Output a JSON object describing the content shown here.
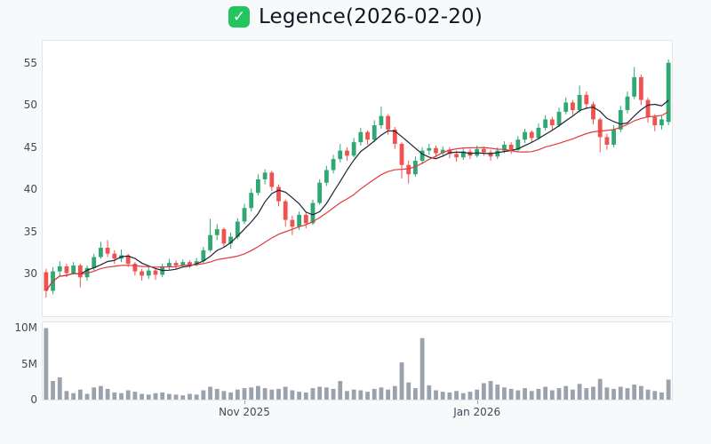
{
  "header": {
    "icon_glyph": "✓",
    "icon_color": "#22c55e",
    "title": "Legence(2026-02-20)"
  },
  "chart_data": {
    "type": "candlestick",
    "title": "Legence(2026-02-20)",
    "panels": [
      "price",
      "volume"
    ],
    "legend_position": "none",
    "grid": false,
    "price_axis": {
      "min": 25.0,
      "max": 57.6,
      "ticks": [
        55,
        50,
        45,
        40,
        35,
        30
      ]
    },
    "volume_axis": {
      "min": 0,
      "max": 10.8,
      "unit": "M",
      "ticks": [
        {
          "value": 10,
          "label": "10M"
        },
        {
          "value": 5,
          "label": "5M"
        },
        {
          "value": 0,
          "label": "0"
        }
      ]
    },
    "x_axis": {
      "ticks": [
        {
          "index": 29,
          "label": "Nov 2025"
        },
        {
          "index": 63,
          "label": "Jan 2026"
        }
      ]
    },
    "colors": {
      "up": "#2fa874",
      "down": "#ef5350",
      "volume": "#9aa3ad",
      "ma_fast": "#1c2333",
      "ma_slow": "#e03a3a"
    },
    "series": {
      "ohlc": [
        [
          30.2,
          30.6,
          27.2,
          28.0
        ],
        [
          28.0,
          30.8,
          27.6,
          30.3
        ],
        [
          30.3,
          31.5,
          29.8,
          30.9
        ],
        [
          30.9,
          31.2,
          29.6,
          30.1
        ],
        [
          30.1,
          31.4,
          29.9,
          31.0
        ],
        [
          31.0,
          31.2,
          28.4,
          29.6
        ],
        [
          29.6,
          31.0,
          29.2,
          30.7
        ],
        [
          30.7,
          32.4,
          30.4,
          32.0
        ],
        [
          32.0,
          33.8,
          31.8,
          33.1
        ],
        [
          33.1,
          34.0,
          32.0,
          32.4
        ],
        [
          32.4,
          32.8,
          31.2,
          31.8
        ],
        [
          31.8,
          32.9,
          31.4,
          32.2
        ],
        [
          32.2,
          32.4,
          30.8,
          31.2
        ],
        [
          31.2,
          31.4,
          29.8,
          30.3
        ],
        [
          30.3,
          30.6,
          29.2,
          29.8
        ],
        [
          29.8,
          30.8,
          29.4,
          30.4
        ],
        [
          30.4,
          30.7,
          29.3,
          29.9
        ],
        [
          29.9,
          31.2,
          29.6,
          30.9
        ],
        [
          30.9,
          31.8,
          30.5,
          31.3
        ],
        [
          31.3,
          31.6,
          30.6,
          31.0
        ],
        [
          31.0,
          31.7,
          30.8,
          31.4
        ],
        [
          31.4,
          31.6,
          30.7,
          31.1
        ],
        [
          31.1,
          31.9,
          30.9,
          31.5
        ],
        [
          31.5,
          33.2,
          31.3,
          32.8
        ],
        [
          32.8,
          36.5,
          32.6,
          34.6
        ],
        [
          34.6,
          35.9,
          34.0,
          35.3
        ],
        [
          35.3,
          35.5,
          33.2,
          33.6
        ],
        [
          33.6,
          34.9,
          33.0,
          34.4
        ],
        [
          34.4,
          36.6,
          34.1,
          36.2
        ],
        [
          36.2,
          38.3,
          35.9,
          37.8
        ],
        [
          37.8,
          40.1,
          37.4,
          39.6
        ],
        [
          39.6,
          41.8,
          39.3,
          41.2
        ],
        [
          41.2,
          42.4,
          40.6,
          42.0
        ],
        [
          42.0,
          42.2,
          39.8,
          40.3
        ],
        [
          40.3,
          40.6,
          38.0,
          38.6
        ],
        [
          38.6,
          38.8,
          35.6,
          36.4
        ],
        [
          36.4,
          36.9,
          34.6,
          35.6
        ],
        [
          35.6,
          37.4,
          35.2,
          37.0
        ],
        [
          37.0,
          37.3,
          35.4,
          36.0
        ],
        [
          36.0,
          38.8,
          35.8,
          38.4
        ],
        [
          38.4,
          41.2,
          38.2,
          40.8
        ],
        [
          40.8,
          42.8,
          40.4,
          42.3
        ],
        [
          42.3,
          44.1,
          41.9,
          43.6
        ],
        [
          43.6,
          45.4,
          43.2,
          44.6
        ],
        [
          44.6,
          45.0,
          43.4,
          44.0
        ],
        [
          44.0,
          46.1,
          43.8,
          45.6
        ],
        [
          45.6,
          47.3,
          45.2,
          46.8
        ],
        [
          46.8,
          47.0,
          45.3,
          45.9
        ],
        [
          45.9,
          48.2,
          45.6,
          47.6
        ],
        [
          47.6,
          49.8,
          47.2,
          48.7
        ],
        [
          48.7,
          48.9,
          46.5,
          47.1
        ],
        [
          47.1,
          47.4,
          44.8,
          45.4
        ],
        [
          45.4,
          45.6,
          41.3,
          42.9
        ],
        [
          42.9,
          43.4,
          40.7,
          41.8
        ],
        [
          41.8,
          43.9,
          41.5,
          43.4
        ],
        [
          43.4,
          45.0,
          43.0,
          44.6
        ],
        [
          44.6,
          45.4,
          44.1,
          44.9
        ],
        [
          44.9,
          45.2,
          43.8,
          44.3
        ],
        [
          44.3,
          45.1,
          43.9,
          44.7
        ],
        [
          44.7,
          45.0,
          43.7,
          44.2
        ],
        [
          44.2,
          44.6,
          43.3,
          43.8
        ],
        [
          43.8,
          44.9,
          43.5,
          44.5
        ],
        [
          44.5,
          44.8,
          43.6,
          44.0
        ],
        [
          44.0,
          45.2,
          43.8,
          44.8
        ],
        [
          44.8,
          45.1,
          44.0,
          44.4
        ],
        [
          44.4,
          44.7,
          43.4,
          43.9
        ],
        [
          43.9,
          45.0,
          43.6,
          44.6
        ],
        [
          44.6,
          45.7,
          44.3,
          45.3
        ],
        [
          45.3,
          45.6,
          44.2,
          44.7
        ],
        [
          44.7,
          46.3,
          44.5,
          45.9
        ],
        [
          45.9,
          47.2,
          45.5,
          46.8
        ],
        [
          46.8,
          47.0,
          45.6,
          46.1
        ],
        [
          46.1,
          47.8,
          45.9,
          47.3
        ],
        [
          47.3,
          48.8,
          47.0,
          48.3
        ],
        [
          48.3,
          48.6,
          47.1,
          47.6
        ],
        [
          47.6,
          49.7,
          47.4,
          49.2
        ],
        [
          49.2,
          50.9,
          48.9,
          50.3
        ],
        [
          50.3,
          50.6,
          48.8,
          49.4
        ],
        [
          49.4,
          52.3,
          49.1,
          51.2
        ],
        [
          51.2,
          51.6,
          49.5,
          50.1
        ],
        [
          50.1,
          50.4,
          47.7,
          48.3
        ],
        [
          48.3,
          48.5,
          44.4,
          46.2
        ],
        [
          46.2,
          46.6,
          44.7,
          45.3
        ],
        [
          45.3,
          47.6,
          45.0,
          47.1
        ],
        [
          47.1,
          49.9,
          46.8,
          49.4
        ],
        [
          49.4,
          51.6,
          49.0,
          51.0
        ],
        [
          51.0,
          54.5,
          50.7,
          53.3
        ],
        [
          53.3,
          53.6,
          50.0,
          50.6
        ],
        [
          50.6,
          50.9,
          47.9,
          48.6
        ],
        [
          48.6,
          48.9,
          46.9,
          47.6
        ],
        [
          47.6,
          48.7,
          47.1,
          48.3
        ],
        [
          48.0,
          55.4,
          47.6,
          55.0
        ]
      ],
      "volume_millions": [
        10.0,
        2.6,
        3.1,
        1.2,
        0.9,
        1.4,
        0.8,
        1.7,
        1.9,
        1.5,
        1.0,
        0.9,
        1.3,
        1.1,
        0.8,
        0.7,
        0.9,
        1.0,
        0.8,
        0.7,
        0.6,
        0.8,
        0.7,
        1.3,
        1.8,
        1.5,
        1.2,
        1.0,
        1.4,
        1.6,
        1.7,
        1.9,
        1.6,
        1.4,
        1.5,
        1.8,
        1.3,
        1.1,
        1.0,
        1.6,
        1.8,
        1.7,
        1.5,
        2.6,
        1.2,
        1.4,
        1.3,
        1.1,
        1.5,
        1.7,
        1.4,
        1.9,
        5.2,
        2.4,
        1.6,
        8.6,
        2.0,
        1.3,
        1.1,
        1.0,
        1.2,
        0.9,
        1.1,
        1.4,
        2.3,
        2.6,
        2.1,
        1.7,
        1.5,
        1.3,
        1.6,
        1.2,
        1.5,
        1.8,
        1.3,
        1.6,
        1.9,
        1.4,
        2.2,
        1.6,
        1.8,
        2.9,
        1.7,
        1.5,
        1.8,
        1.6,
        2.1,
        1.9,
        1.4,
        1.2,
        1.0,
        2.8
      ],
      "overlays": [
        {
          "name": "ma-fast",
          "window": 6,
          "color": "#1c2333"
        },
        {
          "name": "ma-slow",
          "window": 20,
          "color": "#e03a3a"
        }
      ]
    }
  }
}
